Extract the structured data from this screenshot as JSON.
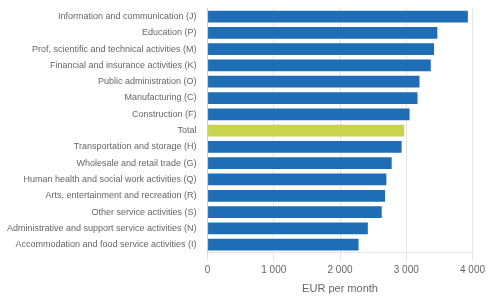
{
  "chart_data": {
    "type": "bar",
    "orientation": "horizontal",
    "categories": [
      "Accommodation and food service activities (I)",
      "Administrative and support service activities (N)",
      "Other service activities (S)",
      "Arts, entertainment and recreation (R)",
      "Human health and social work activities (Q)",
      "Wholesale and retail trade (G)",
      "Transportation and storage (H)",
      "Total",
      "Construction (F)",
      "Manufacturing (C)",
      "Public administration (O)",
      "Financial and insurance activities (K)",
      "Prof, scientific and technical activities (M)",
      "Education (P)",
      "Information and communication (J)"
    ],
    "values": [
      2280,
      2420,
      2630,
      2680,
      2700,
      2780,
      2930,
      2970,
      3050,
      3170,
      3200,
      3370,
      3420,
      3470,
      3930
    ],
    "colors": [
      "#1f6eb5",
      "#1f6eb5",
      "#1f6eb5",
      "#1f6eb5",
      "#1f6eb5",
      "#1f6eb5",
      "#1f6eb5",
      "#c8d44e",
      "#1f6eb5",
      "#1f6eb5",
      "#1f6eb5",
      "#1f6eb5",
      "#1f6eb5",
      "#1f6eb5",
      "#1f6eb5"
    ],
    "xlabel": "EUR per month",
    "xlim": [
      0,
      4000
    ],
    "xticks": [
      0,
      {
        "value": 1000,
        "label": "1 000"
      },
      {
        "value": 2000,
        "label": "2 000"
      },
      {
        "value": 3000,
        "label": "3 000"
      },
      {
        "value": 4000,
        "label": "4 000"
      }
    ],
    "grid": true
  }
}
